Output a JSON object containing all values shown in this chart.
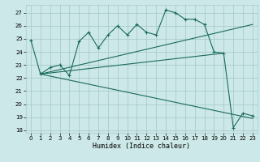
{
  "title": "",
  "xlabel": "Humidex (Indice chaleur)",
  "bg_color": "#cce8e8",
  "grid_color": "#aacccc",
  "line_color": "#1a6b5a",
  "xlim": [
    -0.5,
    23.5
  ],
  "ylim": [
    17.8,
    27.6
  ],
  "yticks": [
    18,
    19,
    20,
    21,
    22,
    23,
    24,
    25,
    26,
    27
  ],
  "xticks": [
    0,
    1,
    2,
    3,
    4,
    5,
    6,
    7,
    8,
    9,
    10,
    11,
    12,
    13,
    14,
    15,
    16,
    17,
    18,
    19,
    20,
    21,
    22,
    23
  ],
  "series": [
    [
      0,
      24.9
    ],
    [
      1,
      22.3
    ],
    [
      2,
      22.8
    ],
    [
      3,
      23.0
    ],
    [
      4,
      22.2
    ],
    [
      5,
      24.8
    ],
    [
      6,
      25.5
    ],
    [
      7,
      24.3
    ],
    [
      8,
      25.3
    ],
    [
      9,
      26.0
    ],
    [
      10,
      25.3
    ],
    [
      11,
      26.1
    ],
    [
      12,
      25.5
    ],
    [
      13,
      25.3
    ],
    [
      14,
      27.2
    ],
    [
      15,
      27.0
    ],
    [
      16,
      26.5
    ],
    [
      17,
      26.5
    ],
    [
      18,
      26.1
    ],
    [
      19,
      24.0
    ],
    [
      20,
      23.9
    ],
    [
      21,
      18.2
    ],
    [
      22,
      19.3
    ],
    [
      23,
      19.1
    ]
  ],
  "line2": [
    [
      1,
      22.3
    ],
    [
      23,
      26.1
    ]
  ],
  "line3": [
    [
      1,
      22.3
    ],
    [
      20,
      23.9
    ]
  ],
  "line4": [
    [
      1,
      22.3
    ],
    [
      23,
      18.9
    ]
  ]
}
